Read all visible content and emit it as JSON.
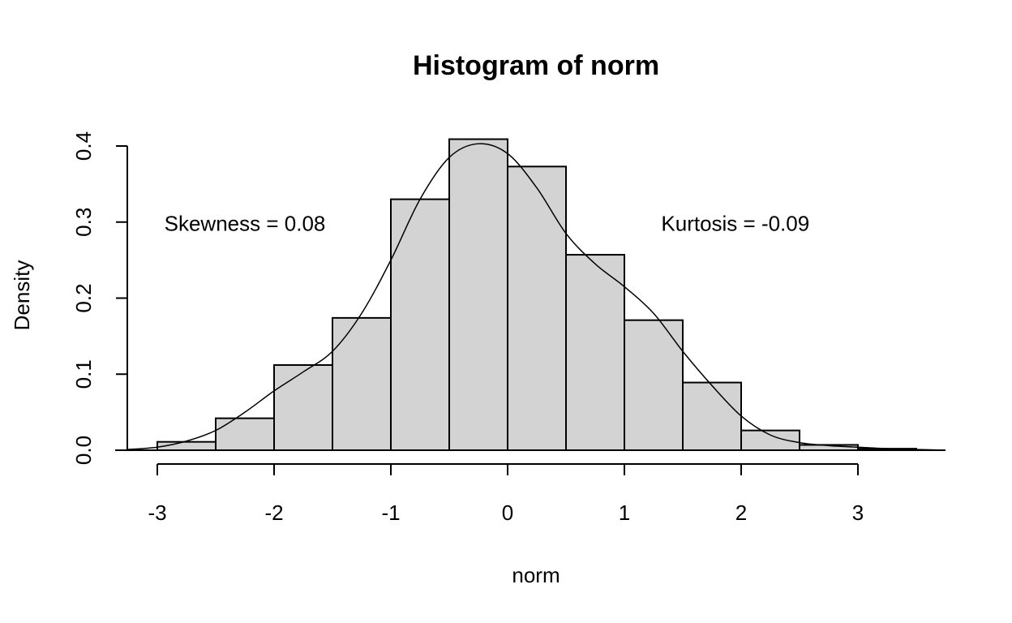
{
  "chart_data": {
    "type": "bar",
    "subtype": "histogram-with-density",
    "title": "Histogram of norm",
    "xlabel": "norm",
    "ylabel": "Density",
    "xlim": [
      -3.25,
      3.75
    ],
    "ylim": [
      0,
      0.42
    ],
    "x_ticks": [
      -3,
      -2,
      -1,
      0,
      1,
      2,
      3
    ],
    "x_tick_labels": [
      "-3",
      "-2",
      "-1",
      "0",
      "1",
      "2",
      "3"
    ],
    "y_ticks": [
      0,
      0.1,
      0.2,
      0.3,
      0.4
    ],
    "y_tick_labels": [
      "0.0",
      "0.1",
      "0.2",
      "0.3",
      "0.4"
    ],
    "bins": [
      {
        "left": -3.0,
        "right": -2.5,
        "density": 0.011
      },
      {
        "left": -2.5,
        "right": -2.0,
        "density": 0.042
      },
      {
        "left": -2.0,
        "right": -1.5,
        "density": 0.112
      },
      {
        "left": -1.5,
        "right": -1.0,
        "density": 0.174
      },
      {
        "left": -1.0,
        "right": -0.5,
        "density": 0.33
      },
      {
        "left": -0.5,
        "right": 0.0,
        "density": 0.409
      },
      {
        "left": 0.0,
        "right": 0.5,
        "density": 0.373
      },
      {
        "left": 0.5,
        "right": 1.0,
        "density": 0.257
      },
      {
        "left": 1.0,
        "right": 1.5,
        "density": 0.171
      },
      {
        "left": 1.5,
        "right": 2.0,
        "density": 0.089
      },
      {
        "left": 2.0,
        "right": 2.5,
        "density": 0.026
      },
      {
        "left": 2.5,
        "right": 3.0,
        "density": 0.007
      },
      {
        "left": 3.0,
        "right": 3.5,
        "density": 0.002
      }
    ],
    "density_curve": {
      "x": [
        -3.25,
        -3.0,
        -2.75,
        -2.5,
        -2.25,
        -2.0,
        -1.75,
        -1.5,
        -1.25,
        -1.0,
        -0.75,
        -0.5,
        -0.25,
        0.0,
        0.25,
        0.5,
        0.75,
        1.0,
        1.25,
        1.5,
        1.75,
        2.0,
        2.25,
        2.5,
        2.75,
        3.0,
        3.25,
        3.5,
        3.75
      ],
      "y": [
        0.001,
        0.004,
        0.012,
        0.026,
        0.05,
        0.078,
        0.103,
        0.13,
        0.18,
        0.25,
        0.33,
        0.385,
        0.403,
        0.39,
        0.345,
        0.285,
        0.245,
        0.215,
        0.18,
        0.13,
        0.085,
        0.045,
        0.02,
        0.01,
        0.006,
        0.004,
        0.002,
        0.001,
        0.0
      ]
    },
    "annotations": [
      {
        "text": "Skewness = 0.08",
        "x": -2.25,
        "y": 0.298
      },
      {
        "text": "Kurtosis = -0.09",
        "x": 1.95,
        "y": 0.298
      }
    ],
    "grid": false,
    "legend": "none"
  }
}
